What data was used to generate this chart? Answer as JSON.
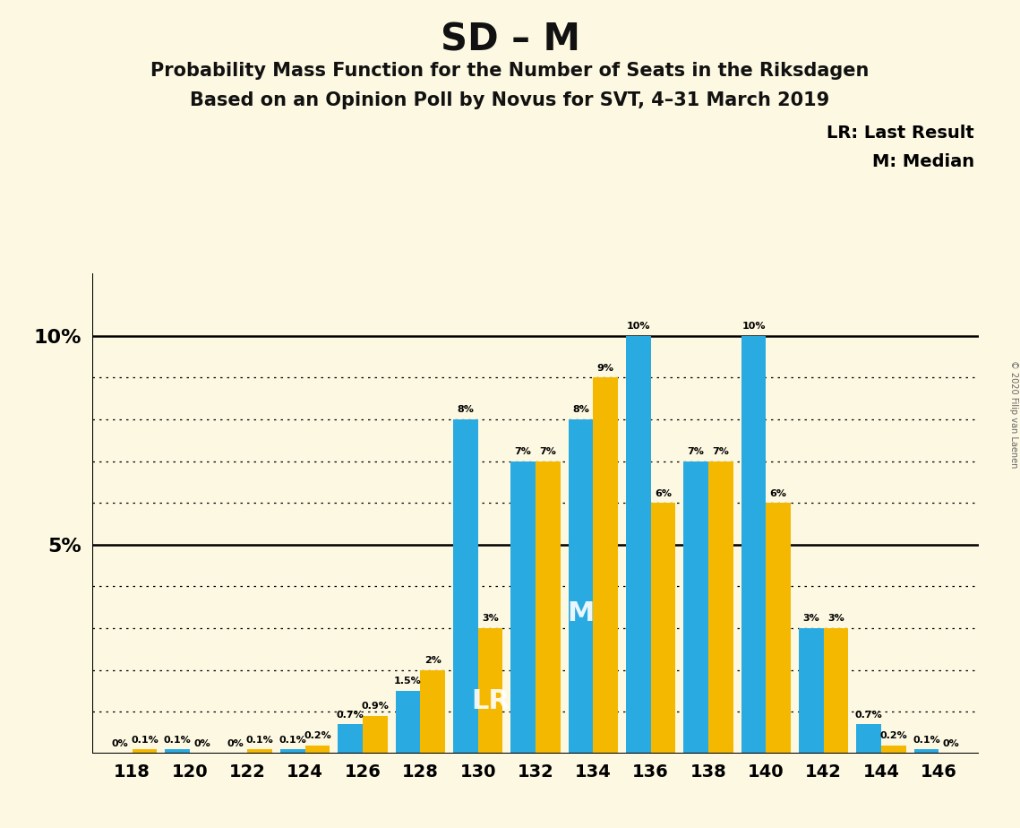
{
  "title": "SD – M",
  "subtitle1": "Probability Mass Function for the Number of Seats in the Riksdagen",
  "subtitle2": "Based on an Opinion Poll by Novus for SVT, 4–31 March 2019",
  "copyright": "© 2020 Filip van Laenen",
  "legend_lr": "LR: Last Result",
  "legend_m": "M: Median",
  "background_color": "#fdf8e1",
  "bar_color_blue": "#29abe2",
  "bar_color_gold": "#f5b800",
  "seats": [
    118,
    120,
    122,
    124,
    126,
    128,
    130,
    132,
    134,
    136,
    138,
    140,
    142,
    144,
    146
  ],
  "blue_values": [
    0.0,
    0.1,
    0.0,
    0.1,
    0.7,
    1.5,
    8.0,
    7.0,
    8.0,
    10.0,
    7.0,
    10.0,
    3.0,
    0.7,
    0.1
  ],
  "gold_values": [
    0.1,
    0.0,
    0.1,
    0.2,
    0.9,
    2.0,
    3.0,
    7.0,
    9.0,
    6.0,
    7.0,
    6.0,
    3.0,
    0.2,
    0.0
  ],
  "blue_labels": [
    "0%",
    "0.1%",
    "0%",
    "0.1%",
    "0.7%",
    "1.5%",
    "8%",
    "7%",
    "8%",
    "10%",
    "7%",
    "10%",
    "3%",
    "0.7%",
    "0.1%"
  ],
  "gold_labels": [
    "0.1%",
    "0%",
    "0.1%",
    "0.2%",
    "0.9%",
    "2%",
    "3%",
    "7%",
    "9%",
    "6%",
    "7%",
    "6%",
    "3%",
    "0.2%",
    "0%"
  ],
  "lr_seat_idx": 6,
  "lr_on": "gold",
  "median_seat_idx": 8,
  "median_on": "blue",
  "ylim": [
    0,
    11.5
  ],
  "solid_lines": [
    5,
    10
  ],
  "dotted_lines": [
    1,
    2,
    3,
    4,
    6,
    7,
    8,
    9
  ]
}
